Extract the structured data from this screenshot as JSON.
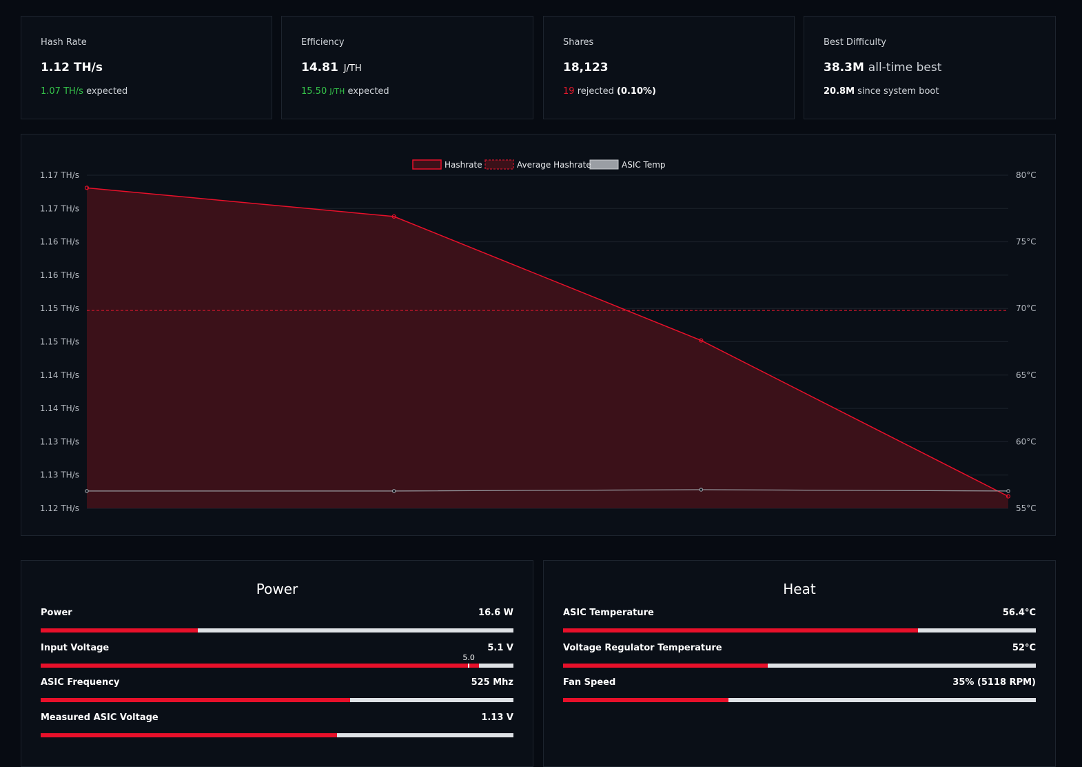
{
  "stats": [
    {
      "title": "Hash Rate",
      "value": "1.12 TH/s",
      "sub_accent": "1.07 TH/s",
      "sub_text": "expected"
    },
    {
      "title": "Efficiency",
      "value": "14.81",
      "value_unit": "J/TH",
      "sub_accent": "15.50",
      "sub_accent_unit": "J/TH",
      "sub_text": "expected"
    },
    {
      "title": "Shares",
      "value": "18,123",
      "sub_accent": "19",
      "sub_text": "rejected",
      "sub_strong": "(0.10%)"
    },
    {
      "title": "Best Difficulty",
      "value": "38.3M",
      "value_soft": "all-time best",
      "sub_strong": "20.8M",
      "sub_text": "since system boot"
    }
  ],
  "chart_data": {
    "type": "line",
    "legend": [
      "Hashrate",
      "Average Hashrate",
      "ASIC Temp"
    ],
    "legend_position": "top-center",
    "y_left_ticks": [
      "1.17 TH/s",
      "1.17 TH/s",
      "1.16 TH/s",
      "1.16 TH/s",
      "1.15 TH/s",
      "1.15 TH/s",
      "1.14 TH/s",
      "1.14 TH/s",
      "1.13 TH/s",
      "1.13 TH/s",
      "1.12 TH/s"
    ],
    "y_right_ticks": [
      "80°C",
      "75°C",
      "70°C",
      "65°C",
      "60°C",
      "55°C"
    ],
    "y_left_range": [
      1.12,
      1.17
    ],
    "y_right_range": [
      55,
      80
    ],
    "x_points": 4,
    "grid": true,
    "series": [
      {
        "name": "Hashrate",
        "axis": "left",
        "values": [
          1.1681,
          1.1638,
          1.1452,
          1.1218
        ],
        "color": "#e8102a",
        "fill": "#3b1119"
      },
      {
        "name": "Average Hashrate",
        "axis": "left",
        "constant": 1.1497,
        "color": "#b01528",
        "dashed": true
      },
      {
        "name": "ASIC Temp",
        "axis": "right",
        "values": [
          56.3,
          56.3,
          56.4,
          56.3
        ],
        "color": "#9a9ea4"
      }
    ]
  },
  "power": {
    "title": "Power",
    "rows": [
      {
        "label": "Power",
        "value": "16.6 W",
        "fill": 0.332
      },
      {
        "label": "Input Voltage",
        "value": "5.1 V",
        "fill": 0.927,
        "marker": 0.904,
        "marker_label": "5.0"
      },
      {
        "label": "ASIC Frequency",
        "value": "525 Mhz",
        "fill": 0.655
      },
      {
        "label": "Measured ASIC Voltage",
        "value": "1.13 V",
        "fill": 0.627
      }
    ]
  },
  "heat": {
    "title": "Heat",
    "rows": [
      {
        "label": "ASIC Temperature",
        "value": "56.4°C",
        "fill": 0.751
      },
      {
        "label": "Voltage Regulator Temperature",
        "value": "52°C",
        "fill": 0.433
      },
      {
        "label": "Fan Speed",
        "value": "35% (5118 RPM)",
        "fill": 0.35
      }
    ]
  },
  "colors": {
    "accent": "#e8102a",
    "good": "#35c44a",
    "bg": "#070b12",
    "card": "#0a0f17"
  }
}
